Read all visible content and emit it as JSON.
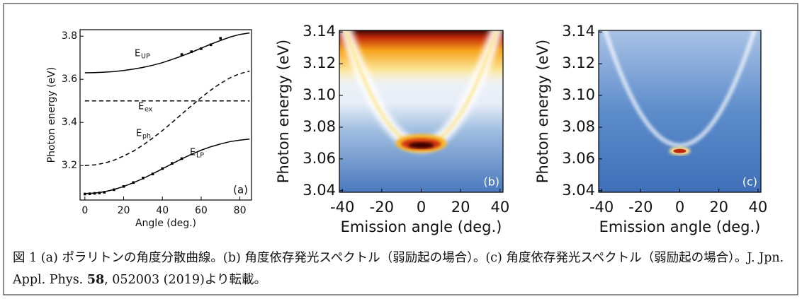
{
  "chart_data": [
    {
      "type": "line",
      "panel_label": "(a)",
      "x_label": "Angle (deg.)",
      "y_label": "Photon energy (eV)",
      "x": [
        0,
        5,
        10,
        15,
        20,
        25,
        30,
        35,
        40,
        45,
        50,
        55,
        60,
        65,
        70,
        75,
        80,
        85
      ],
      "xlim": [
        -2.5,
        86
      ],
      "xticks": [
        0,
        20,
        40,
        60,
        80
      ],
      "ylim": [
        3.04,
        3.83
      ],
      "yticks": [
        3.2,
        3.4,
        3.6,
        3.8
      ],
      "series": [
        {
          "name": "E",
          "subscript": "UP",
          "color": "#000000",
          "dashed": false,
          "values": [
            3.63,
            3.631,
            3.633,
            3.636,
            3.641,
            3.647,
            3.655,
            3.665,
            3.677,
            3.692,
            3.708,
            3.725,
            3.744,
            3.763,
            3.78,
            3.796,
            3.808,
            3.815
          ]
        },
        {
          "name": "E",
          "subscript": "ex",
          "color": "#000000",
          "dashed": true,
          "values": [
            3.5,
            3.5,
            3.5,
            3.5,
            3.5,
            3.5,
            3.5,
            3.5,
            3.5,
            3.5,
            3.5,
            3.5,
            3.5,
            3.5,
            3.5,
            3.5,
            3.5,
            3.5
          ]
        },
        {
          "name": "E",
          "subscript": "ph",
          "color": "#000000",
          "dashed": true,
          "values": [
            3.2,
            3.203,
            3.211,
            3.225,
            3.244,
            3.267,
            3.295,
            3.327,
            3.362,
            3.4,
            3.439,
            3.477,
            3.515,
            3.55,
            3.581,
            3.607,
            3.626,
            3.638
          ]
        },
        {
          "name": "E",
          "subscript": "LP",
          "color": "#000000",
          "dashed": false,
          "values": [
            3.07,
            3.072,
            3.078,
            3.089,
            3.103,
            3.12,
            3.14,
            3.162,
            3.185,
            3.208,
            3.231,
            3.252,
            3.271,
            3.287,
            3.3,
            3.311,
            3.318,
            3.323
          ]
        }
      ],
      "points": [
        {
          "color": "#000000",
          "x": [
            0,
            2.5,
            5,
            7.5,
            10,
            15,
            20,
            25,
            30,
            35,
            40,
            45,
            50
          ],
          "values": [
            3.068,
            3.069,
            3.071,
            3.073,
            3.076,
            3.088,
            3.103,
            3.121,
            3.142,
            3.161,
            3.186,
            3.21,
            3.232
          ]
        },
        {
          "color": "#000000",
          "x": [
            50,
            55,
            60,
            65,
            70
          ],
          "values": [
            3.715,
            3.728,
            3.742,
            3.76,
            3.79
          ]
        }
      ]
    },
    {
      "type": "heatmap",
      "panel_label": "(b)",
      "x_label": "Emission angle (deg.)",
      "y_label": "Photon energy (eV)",
      "xlim": [
        -41.5,
        41.5
      ],
      "xticks": [
        -40,
        -20,
        0,
        20,
        40
      ],
      "ylim": [
        3.039,
        3.141
      ],
      "yticks": [
        3.04,
        3.06,
        3.08,
        {
          "value": 3.1,
          "label": "3.10"
        },
        3.12,
        3.14
      ]
    },
    {
      "type": "heatmap",
      "panel_label": "(c)",
      "x_label": "Emission angle (deg.)",
      "y_label": "Photon energy (eV)",
      "xlim": [
        -41.5,
        41.5
      ],
      "xticks": [
        -40,
        -20,
        0,
        20,
        40
      ],
      "ylim": [
        3.039,
        3.141
      ],
      "yticks": [
        3.04,
        3.06,
        3.08,
        {
          "value": 3.1,
          "label": "3.10"
        },
        3.12,
        3.14
      ]
    }
  ],
  "caption": {
    "before": "図 1 (a) ポラリトンの角度分散曲線。(b) 角度依存発光スペクトル（弱励起の場合）。(c) 角度依存発光スペクトル（弱励起の場合）。J. Jpn. Appl. Phys. ",
    "bold": "58",
    "after": ", 052003 (2019)より転載。"
  }
}
